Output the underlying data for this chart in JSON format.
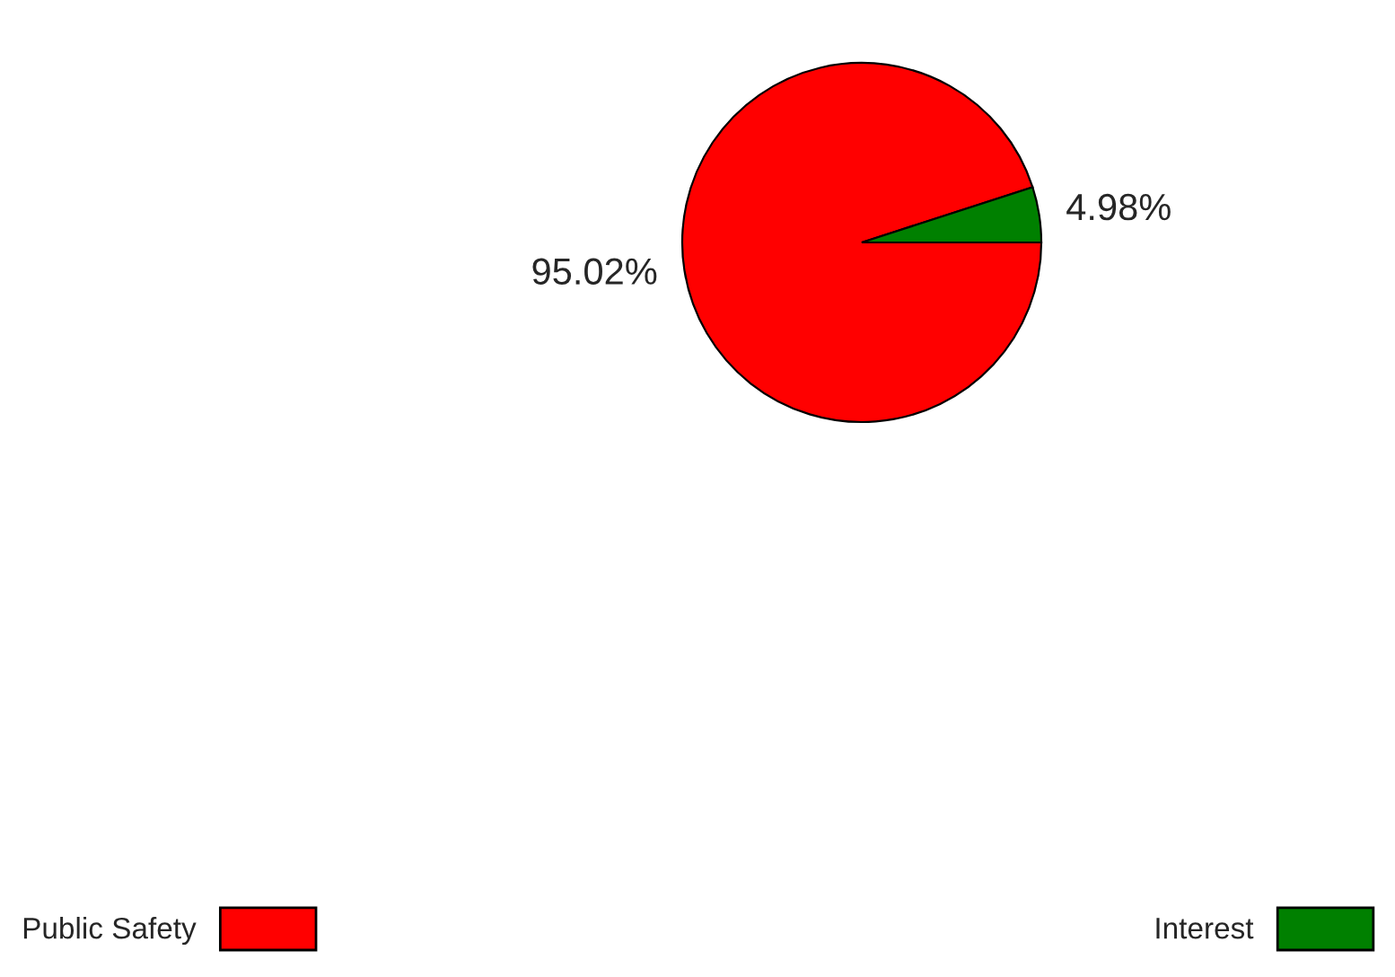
{
  "chart_data": {
    "type": "pie",
    "categories": [
      "Public Safety",
      "Interest"
    ],
    "values": [
      95.02,
      4.98
    ],
    "colors": [
      "#ff0000",
      "#008000"
    ],
    "value_labels": [
      "95.02%",
      "4.98%"
    ],
    "legend": "bottom"
  }
}
